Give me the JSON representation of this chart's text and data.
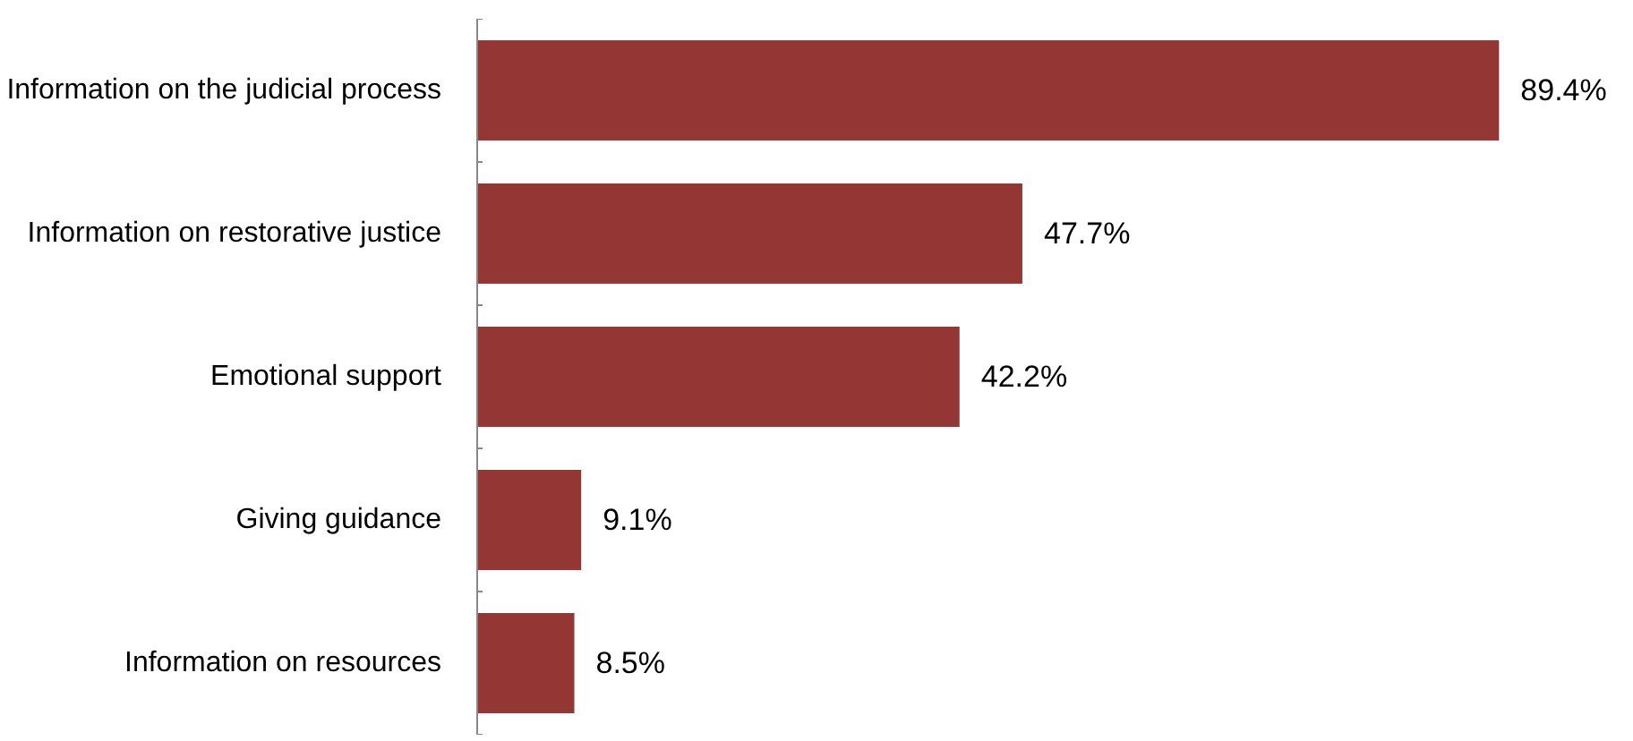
{
  "chart_data": {
    "type": "bar",
    "orientation": "horizontal",
    "categories": [
      "Information on the judicial process",
      "Information on restorative justice",
      "Emotional support",
      "Giving guidance",
      "Information on resources"
    ],
    "values": [
      89.4,
      47.7,
      42.2,
      9.1,
      8.5
    ],
    "color": "#943634",
    "value_labels": [
      "89.4%",
      "47.7%",
      "42.2%",
      "9.1%",
      "8.5%"
    ],
    "tick_labels": "y",
    "grid": false
  }
}
